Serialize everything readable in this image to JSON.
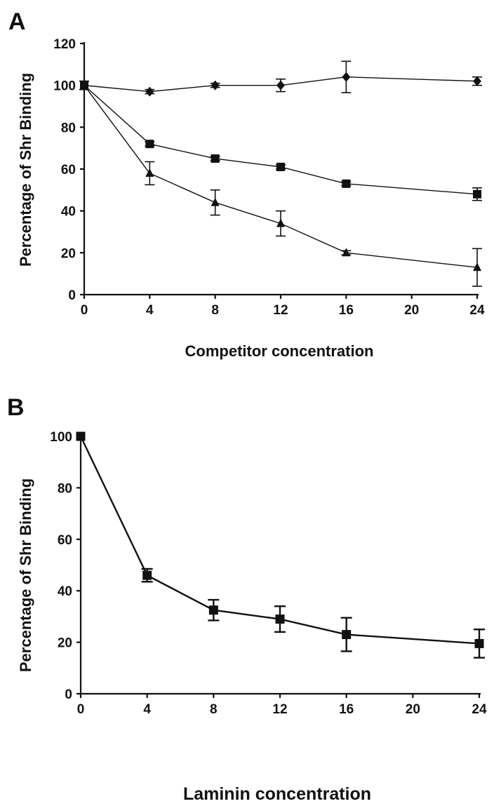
{
  "chart_data": [
    {
      "panel": "A",
      "type": "line",
      "xlabel": "Competitor concentration",
      "ylabel": "Percentage of Shr Binding",
      "xlim": [
        0,
        24
      ],
      "ylim": [
        0,
        120
      ],
      "xticks": [
        0,
        4,
        8,
        12,
        16,
        20,
        24
      ],
      "yticks": [
        0,
        20,
        40,
        60,
        80,
        100,
        120
      ],
      "grid": false,
      "series": [
        {
          "marker": "diamond",
          "x": [
            0,
            4,
            8,
            12,
            16,
            24
          ],
          "y": [
            100,
            97,
            100,
            100,
            104,
            102
          ],
          "err": [
            2,
            1,
            1,
            3,
            7.5,
            2
          ]
        },
        {
          "marker": "square",
          "x": [
            0,
            4,
            8,
            12,
            16,
            24
          ],
          "y": [
            100,
            72,
            65,
            61,
            53,
            48
          ],
          "err": [
            2,
            1,
            1,
            1,
            1,
            3
          ]
        },
        {
          "marker": "triangle",
          "x": [
            0,
            4,
            8,
            12,
            16,
            24
          ],
          "y": [
            100,
            58,
            44,
            34,
            20,
            13
          ],
          "err": [
            2,
            5.5,
            6,
            6,
            1,
            9
          ]
        }
      ]
    },
    {
      "panel": "B",
      "type": "line",
      "xlabel": "Laminin concentration",
      "ylabel": "Percentage of Shr Binding",
      "xlim": [
        0,
        24
      ],
      "ylim": [
        0,
        100
      ],
      "xticks": [
        0,
        4,
        8,
        12,
        16,
        20,
        24
      ],
      "yticks": [
        0,
        20,
        40,
        60,
        80,
        100
      ],
      "grid": false,
      "series": [
        {
          "marker": "square",
          "x": [
            0,
            4,
            8,
            12,
            16,
            24
          ],
          "y": [
            100,
            46,
            32.5,
            29,
            23,
            19.5
          ],
          "err": [
            0.5,
            2.5,
            4,
            5,
            6.5,
            5.5
          ]
        }
      ]
    }
  ]
}
